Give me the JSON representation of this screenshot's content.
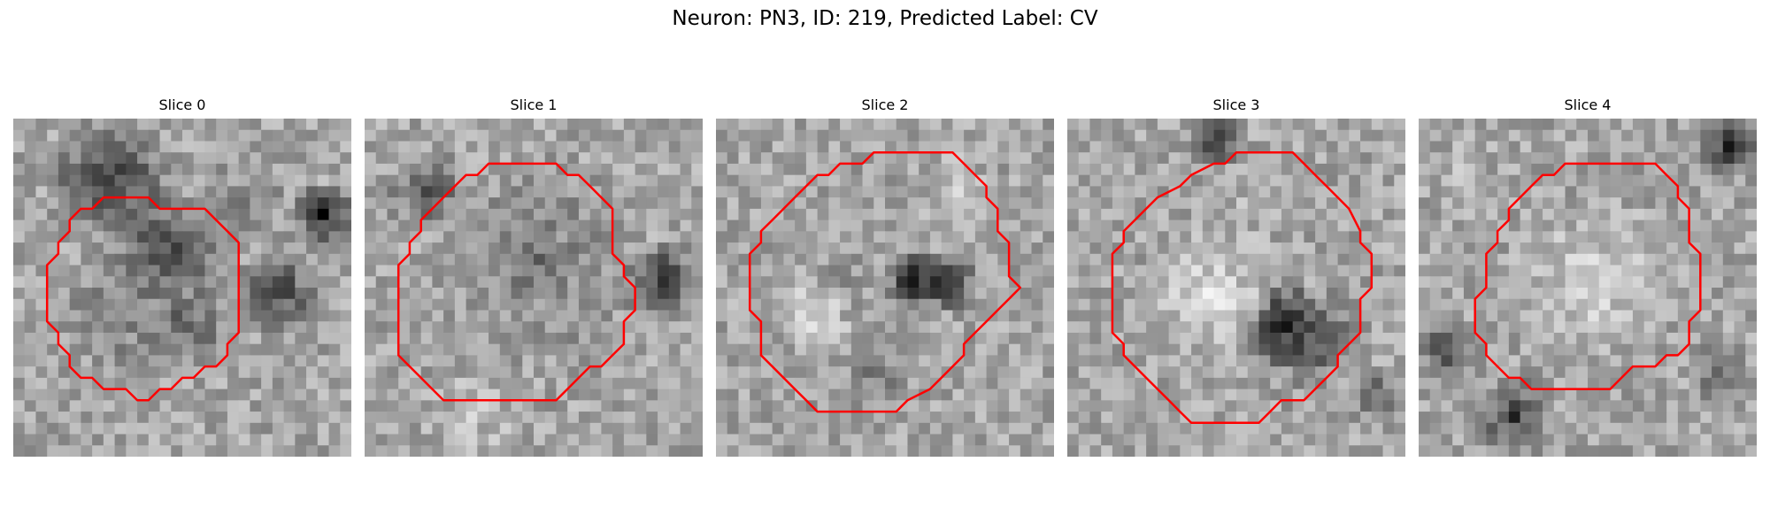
{
  "figure": {
    "title": "Neuron: PN3, ID: 219, Predicted Label: CV",
    "contour_color": "#ff0000",
    "grid_size": 30
  },
  "panels": [
    {
      "title": "Slice 0",
      "contour": [
        [
          12,
          7
        ],
        [
          13,
          8
        ],
        [
          17,
          8
        ],
        [
          18,
          9
        ],
        [
          19,
          10
        ],
        [
          20,
          11
        ],
        [
          20,
          19
        ],
        [
          19,
          20
        ],
        [
          19,
          21
        ],
        [
          18,
          22
        ],
        [
          17,
          22
        ],
        [
          16,
          23
        ],
        [
          15,
          23
        ],
        [
          14,
          24
        ],
        [
          13,
          24
        ],
        [
          12,
          25
        ],
        [
          11,
          25
        ],
        [
          10,
          24
        ],
        [
          8,
          24
        ],
        [
          7,
          23
        ],
        [
          6,
          23
        ],
        [
          5,
          22
        ],
        [
          5,
          21
        ],
        [
          4,
          20
        ],
        [
          4,
          19
        ],
        [
          3,
          18
        ],
        [
          3,
          13
        ],
        [
          4,
          12
        ],
        [
          4,
          11
        ],
        [
          5,
          10
        ],
        [
          5,
          9
        ],
        [
          6,
          8
        ],
        [
          7,
          8
        ],
        [
          8,
          7
        ]
      ],
      "regions": [
        {
          "x": 8,
          "y": 5,
          "r": 6,
          "level": 0.22
        },
        {
          "x": 13,
          "y": 11,
          "r": 6,
          "level": 0.3
        },
        {
          "x": 20,
          "y": 7,
          "r": 5,
          "level": 0.55
        },
        {
          "x": 23,
          "y": 15,
          "r": 4,
          "level": 0.25
        },
        {
          "x": 9,
          "y": 17,
          "r": 6,
          "level": 0.5
        },
        {
          "x": 15,
          "y": 18,
          "r": 4,
          "level": 0.35
        },
        {
          "x": 27,
          "y": 8,
          "r": 3,
          "level": 0.1
        }
      ]
    },
    {
      "title": "Slice 1",
      "contour": [
        [
          12,
          4
        ],
        [
          17,
          4
        ],
        [
          18,
          5
        ],
        [
          19,
          5
        ],
        [
          20,
          6
        ],
        [
          21,
          7
        ],
        [
          22,
          8
        ],
        [
          22,
          9
        ],
        [
          22,
          12
        ],
        [
          23,
          13
        ],
        [
          23,
          14
        ],
        [
          24,
          15
        ],
        [
          24,
          17
        ],
        [
          23,
          18
        ],
        [
          23,
          20
        ],
        [
          22,
          21
        ],
        [
          21,
          22
        ],
        [
          20,
          22
        ],
        [
          19,
          23
        ],
        [
          18,
          24
        ],
        [
          17,
          25
        ],
        [
          7,
          25
        ],
        [
          6,
          24
        ],
        [
          5,
          23
        ],
        [
          4,
          22
        ],
        [
          3,
          21
        ],
        [
          3,
          13
        ],
        [
          4,
          12
        ],
        [
          4,
          11
        ],
        [
          5,
          10
        ],
        [
          5,
          9
        ],
        [
          6,
          8
        ],
        [
          7,
          7
        ],
        [
          8,
          6
        ],
        [
          9,
          5
        ],
        [
          10,
          5
        ],
        [
          11,
          4
        ]
      ],
      "regions": [
        {
          "x": 15,
          "y": 12,
          "r": 8,
          "level": 0.85
        },
        {
          "x": 15,
          "y": 12,
          "r": 10,
          "level": 0.45
        },
        {
          "x": 26,
          "y": 14,
          "r": 4,
          "level": 0.2
        },
        {
          "x": 5,
          "y": 6,
          "r": 4,
          "level": 0.35
        },
        {
          "x": 9,
          "y": 26,
          "r": 5,
          "level": 0.75
        }
      ]
    },
    {
      "title": "Slice 2",
      "contour": [
        [
          16,
          3
        ],
        [
          21,
          3
        ],
        [
          22,
          4
        ],
        [
          23,
          5
        ],
        [
          24,
          6
        ],
        [
          24,
          7
        ],
        [
          25,
          8
        ],
        [
          25,
          10
        ],
        [
          26,
          11
        ],
        [
          26,
          14
        ],
        [
          27,
          15
        ],
        [
          27,
          15
        ],
        [
          26,
          16
        ],
        [
          25,
          17
        ],
        [
          24,
          18
        ],
        [
          23,
          19
        ],
        [
          22,
          20
        ],
        [
          22,
          21
        ],
        [
          21,
          22
        ],
        [
          20,
          23
        ],
        [
          19,
          24
        ],
        [
          17,
          25
        ],
        [
          16,
          26
        ],
        [
          9,
          26
        ],
        [
          8,
          25
        ],
        [
          7,
          24
        ],
        [
          6,
          23
        ],
        [
          5,
          22
        ],
        [
          4,
          21
        ],
        [
          4,
          18
        ],
        [
          3,
          17
        ],
        [
          3,
          12
        ],
        [
          4,
          11
        ],
        [
          4,
          10
        ],
        [
          5,
          9
        ],
        [
          6,
          8
        ],
        [
          7,
          7
        ],
        [
          8,
          6
        ],
        [
          9,
          5
        ],
        [
          10,
          5
        ],
        [
          11,
          4
        ],
        [
          13,
          4
        ],
        [
          14,
          3
        ]
      ],
      "regions": [
        {
          "x": 17,
          "y": 14,
          "r": 3,
          "level": 0.05
        },
        {
          "x": 20,
          "y": 14,
          "r": 3,
          "level": 0.15
        },
        {
          "x": 12,
          "y": 13,
          "r": 5,
          "level": 0.6
        },
        {
          "x": 8,
          "y": 17,
          "r": 4,
          "level": 0.85
        },
        {
          "x": 21,
          "y": 6,
          "r": 4,
          "level": 0.75
        },
        {
          "x": 14,
          "y": 22,
          "r": 4,
          "level": 0.5
        }
      ]
    },
    {
      "title": "Slice 3",
      "contour": [
        [
          16,
          3
        ],
        [
          20,
          3
        ],
        [
          21,
          4
        ],
        [
          22,
          5
        ],
        [
          23,
          6
        ],
        [
          24,
          7
        ],
        [
          25,
          8
        ],
        [
          26,
          10
        ],
        [
          26,
          11
        ],
        [
          27,
          12
        ],
        [
          27,
          15
        ],
        [
          26,
          16
        ],
        [
          26,
          19
        ],
        [
          25,
          20
        ],
        [
          24,
          21
        ],
        [
          24,
          22
        ],
        [
          23,
          23
        ],
        [
          22,
          24
        ],
        [
          21,
          25
        ],
        [
          19,
          25
        ],
        [
          18,
          26
        ],
        [
          17,
          27
        ],
        [
          11,
          27
        ],
        [
          10,
          26
        ],
        [
          9,
          25
        ],
        [
          8,
          24
        ],
        [
          7,
          23
        ],
        [
          6,
          22
        ],
        [
          5,
          21
        ],
        [
          5,
          20
        ],
        [
          4,
          19
        ],
        [
          4,
          12
        ],
        [
          5,
          11
        ],
        [
          5,
          10
        ],
        [
          6,
          9
        ],
        [
          7,
          8
        ],
        [
          8,
          7
        ],
        [
          10,
          6
        ],
        [
          11,
          5
        ],
        [
          13,
          4
        ],
        [
          14,
          4
        ],
        [
          15,
          3
        ]
      ],
      "regions": [
        {
          "x": 19,
          "y": 18,
          "r": 4,
          "level": 0.05
        },
        {
          "x": 21,
          "y": 19,
          "r": 5,
          "level": 0.3
        },
        {
          "x": 12,
          "y": 15,
          "r": 6,
          "level": 0.85
        },
        {
          "x": 15,
          "y": 8,
          "r": 5,
          "level": 0.7
        },
        {
          "x": 13,
          "y": 1,
          "r": 3,
          "level": 0.15
        },
        {
          "x": 27,
          "y": 24,
          "r": 3,
          "level": 0.4
        }
      ]
    },
    {
      "title": "Slice 4",
      "contour": [
        [
          15,
          4
        ],
        [
          21,
          4
        ],
        [
          22,
          5
        ],
        [
          23,
          6
        ],
        [
          23,
          7
        ],
        [
          24,
          8
        ],
        [
          24,
          11
        ],
        [
          25,
          12
        ],
        [
          25,
          17
        ],
        [
          24,
          18
        ],
        [
          24,
          20
        ],
        [
          23,
          21
        ],
        [
          22,
          21
        ],
        [
          21,
          22
        ],
        [
          19,
          22
        ],
        [
          18,
          23
        ],
        [
          17,
          24
        ],
        [
          10,
          24
        ],
        [
          9,
          23
        ],
        [
          8,
          23
        ],
        [
          7,
          22
        ],
        [
          6,
          21
        ],
        [
          6,
          20
        ],
        [
          5,
          19
        ],
        [
          5,
          16
        ],
        [
          6,
          15
        ],
        [
          6,
          12
        ],
        [
          7,
          11
        ],
        [
          7,
          10
        ],
        [
          8,
          9
        ],
        [
          8,
          8
        ],
        [
          9,
          7
        ],
        [
          10,
          6
        ],
        [
          11,
          5
        ],
        [
          12,
          5
        ],
        [
          13,
          4
        ],
        [
          14,
          4
        ]
      ],
      "regions": [
        {
          "x": 15,
          "y": 14,
          "r": 8,
          "level": 0.82
        },
        {
          "x": 8,
          "y": 26,
          "r": 4,
          "level": 0.25
        },
        {
          "x": 2,
          "y": 20,
          "r": 3,
          "level": 0.3
        },
        {
          "x": 27,
          "y": 2,
          "r": 3,
          "level": 0.2
        },
        {
          "x": 3,
          "y": 4,
          "r": 4,
          "level": 0.7
        },
        {
          "x": 26,
          "y": 22,
          "r": 3,
          "level": 0.45
        }
      ]
    }
  ]
}
